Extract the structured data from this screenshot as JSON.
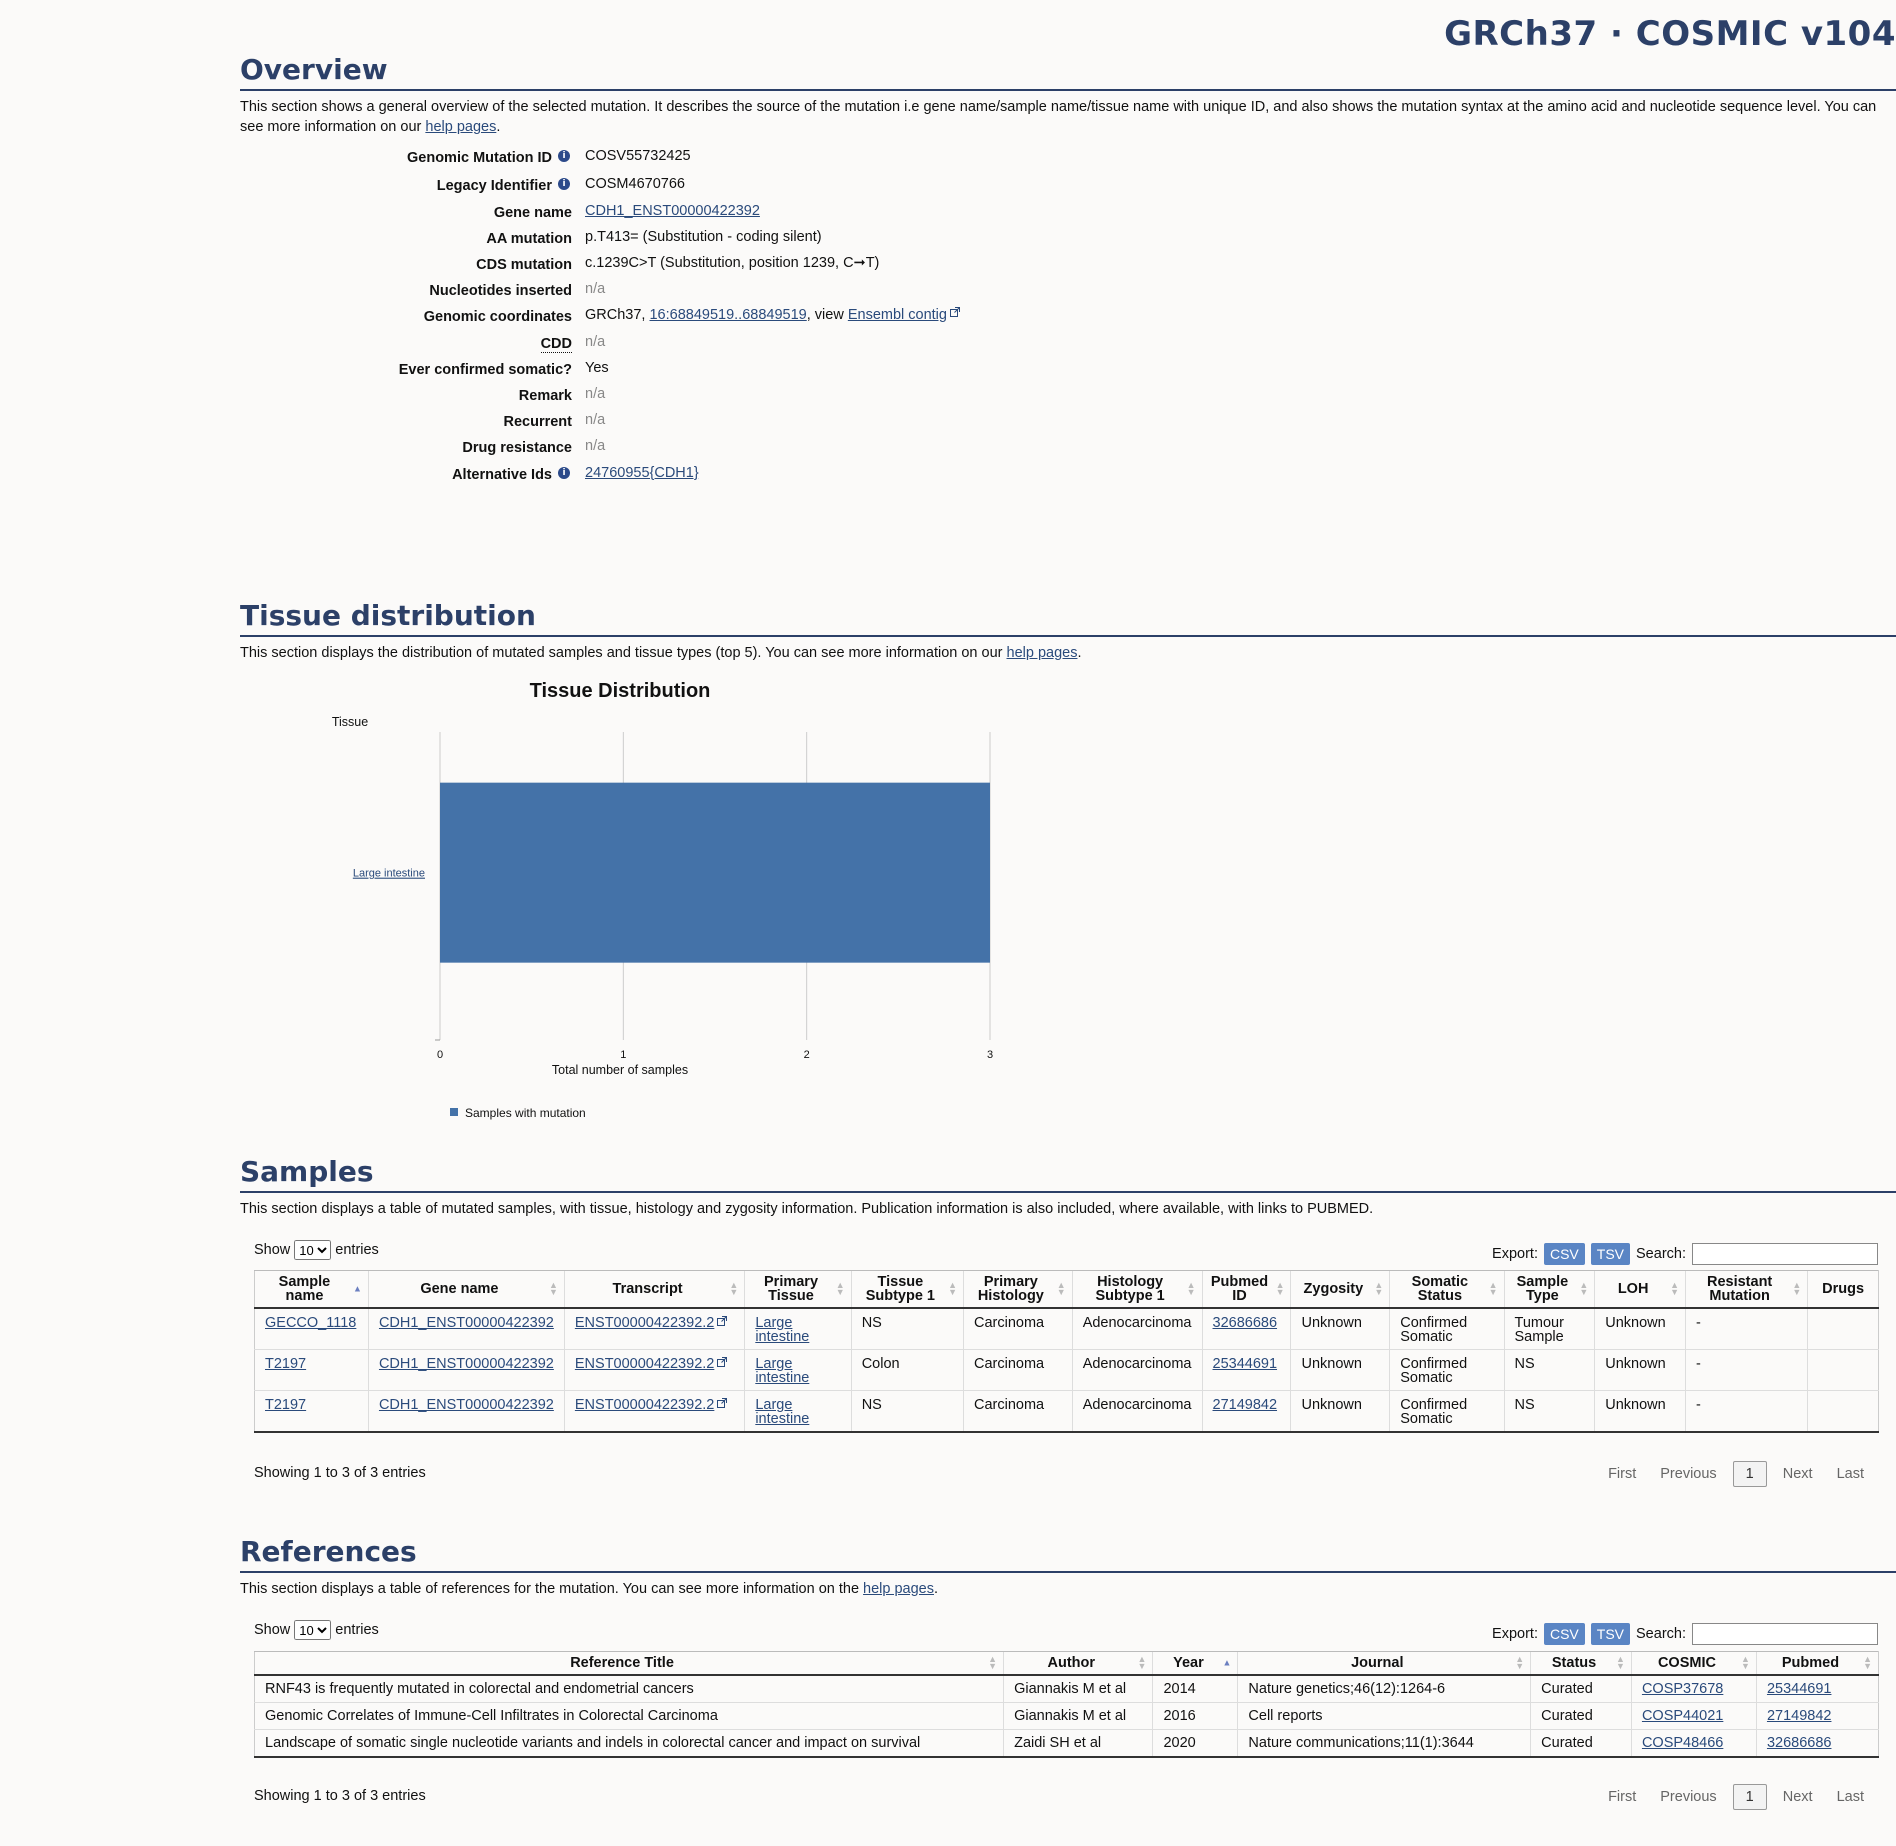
{
  "header": {
    "title": "GRCh37 · COSMIC v104"
  },
  "overview": {
    "heading": "Overview",
    "desc_text": "This section shows a general overview of the selected mutation. It describes the source of the mutation i.e gene name/sample name/tissue name with unique ID, and also shows the mutation syntax at the amino acid and nucleotide sequence level. You can see more information on our ",
    "help_link": "help pages",
    "rows": [
      {
        "key": "Genomic Mutation ID",
        "value": "COSV55732425",
        "info": true
      },
      {
        "key": "Legacy Identifier",
        "value": "COSM4670766",
        "info": true
      },
      {
        "key": "Gene name",
        "value": "CDH1_ENST00000422392",
        "link": true
      },
      {
        "key": "AA mutation",
        "value": "p.T413= (Substitution - coding silent)"
      },
      {
        "key": "CDS mutation",
        "value": "c.1239C>T (Substitution, position 1239, C➞T)"
      },
      {
        "key": "Nucleotides inserted",
        "value": "n/a",
        "muted": true
      },
      {
        "key": "Genomic coordinates",
        "value_prefix": "GRCh37, ",
        "coord_link": "16:68849519..68849519",
        "value_mid": ", view ",
        "ensembl_link": "Ensembl contig"
      },
      {
        "key": "CDD",
        "value": "n/a",
        "muted": true,
        "abbr": true
      },
      {
        "key": "Ever confirmed somatic?",
        "value": "Yes"
      },
      {
        "key": "Remark",
        "value": "n/a",
        "muted": true
      },
      {
        "key": "Recurrent",
        "value": "n/a",
        "muted": true
      },
      {
        "key": "Drug resistance",
        "value": "n/a",
        "muted": true
      },
      {
        "key": "Alternative Ids",
        "value": "24760955{CDH1}",
        "link": true,
        "info": true
      }
    ]
  },
  "tissue": {
    "heading": "Tissue distribution",
    "desc_text": "This section displays the distribution of mutated samples and tissue types (top 5). You can see more information on our ",
    "help_link": "help pages"
  },
  "chart_data": {
    "type": "bar",
    "orientation": "horizontal",
    "title": "Tissue Distribution",
    "ylabel": "Tissue",
    "xlabel": "Total number of samples",
    "categories": [
      "Large intestine"
    ],
    "series": [
      {
        "name": "Samples with mutation",
        "values": [
          3
        ],
        "color": "#4472a8"
      }
    ],
    "xlim": [
      0,
      3
    ],
    "xticks": [
      "0",
      "1",
      "2",
      "3"
    ],
    "grid": true,
    "legend": "bottom-left"
  },
  "samples": {
    "heading": "Samples",
    "desc_text": "This section displays a table of mutated samples, with tissue, histology and zygosity information. Publication information is also included, where available, with links to PUBMED.",
    "show_label": "Show",
    "entries_label": "entries",
    "page_size": "10",
    "export_label": "Export:",
    "csv_label": "CSV",
    "tsv_label": "TSV",
    "search_label": "Search:",
    "columns": [
      "Sample name",
      "Gene name",
      "Transcript",
      "Primary Tissue",
      "Tissue Subtype 1",
      "Primary Histology",
      "Histology Subtype 1",
      "Pubmed ID",
      "Zygosity",
      "Somatic Status",
      "Sample Type",
      "LOH",
      "Resistant Mutation",
      "Drugs"
    ],
    "rows": [
      [
        "GECCO_1118",
        "CDH1_ENST00000422392",
        "ENST00000422392.2",
        "Large intestine",
        "NS",
        "Carcinoma",
        "Adenocarcinoma",
        "32686686",
        "Unknown",
        "Confirmed Somatic",
        "Tumour Sample",
        "Unknown",
        "-",
        ""
      ],
      [
        "T2197",
        "CDH1_ENST00000422392",
        "ENST00000422392.2",
        "Large intestine",
        "Colon",
        "Carcinoma",
        "Adenocarcinoma",
        "25344691",
        "Unknown",
        "Confirmed Somatic",
        "NS",
        "Unknown",
        "-",
        ""
      ],
      [
        "T2197",
        "CDH1_ENST00000422392",
        "ENST00000422392.2",
        "Large intestine",
        "NS",
        "Carcinoma",
        "Adenocarcinoma",
        "27149842",
        "Unknown",
        "Confirmed Somatic",
        "NS",
        "Unknown",
        "-",
        ""
      ]
    ],
    "info": "Showing 1 to 3 of 3 entries",
    "pager": {
      "first": "First",
      "previous": "Previous",
      "page": "1",
      "next": "Next",
      "last": "Last"
    }
  },
  "references": {
    "heading": "References",
    "desc_text": "This section displays a table of references for the mutation. You can see more information on the ",
    "help_link": "help pages",
    "show_label": "Show",
    "entries_label": "entries",
    "page_size": "10",
    "export_label": "Export:",
    "csv_label": "CSV",
    "tsv_label": "TSV",
    "search_label": "Search:",
    "columns": [
      "Reference Title",
      "Author",
      "Year",
      "Journal",
      "Status",
      "COSMIC",
      "Pubmed"
    ],
    "rows": [
      [
        "RNF43 is frequently mutated in colorectal and endometrial cancers",
        "Giannakis M et al",
        "2014",
        "Nature genetics;46(12):1264-6",
        "Curated",
        "COSP37678",
        "25344691"
      ],
      [
        "Genomic Correlates of Immune-Cell Infiltrates in Colorectal Carcinoma",
        "Giannakis M et al",
        "2016",
        "Cell reports",
        "Curated",
        "COSP44021",
        "27149842"
      ],
      [
        "Landscape of somatic single nucleotide variants and indels in colorectal cancer and impact on survival",
        "Zaidi SH et al",
        "2020",
        "Nature communications;11(1):3644",
        "Curated",
        "COSP48466",
        "32686686"
      ]
    ],
    "info": "Showing 1 to 3 of 3 entries",
    "pager": {
      "first": "First",
      "previous": "Previous",
      "page": "1",
      "next": "Next",
      "last": "Last"
    }
  }
}
